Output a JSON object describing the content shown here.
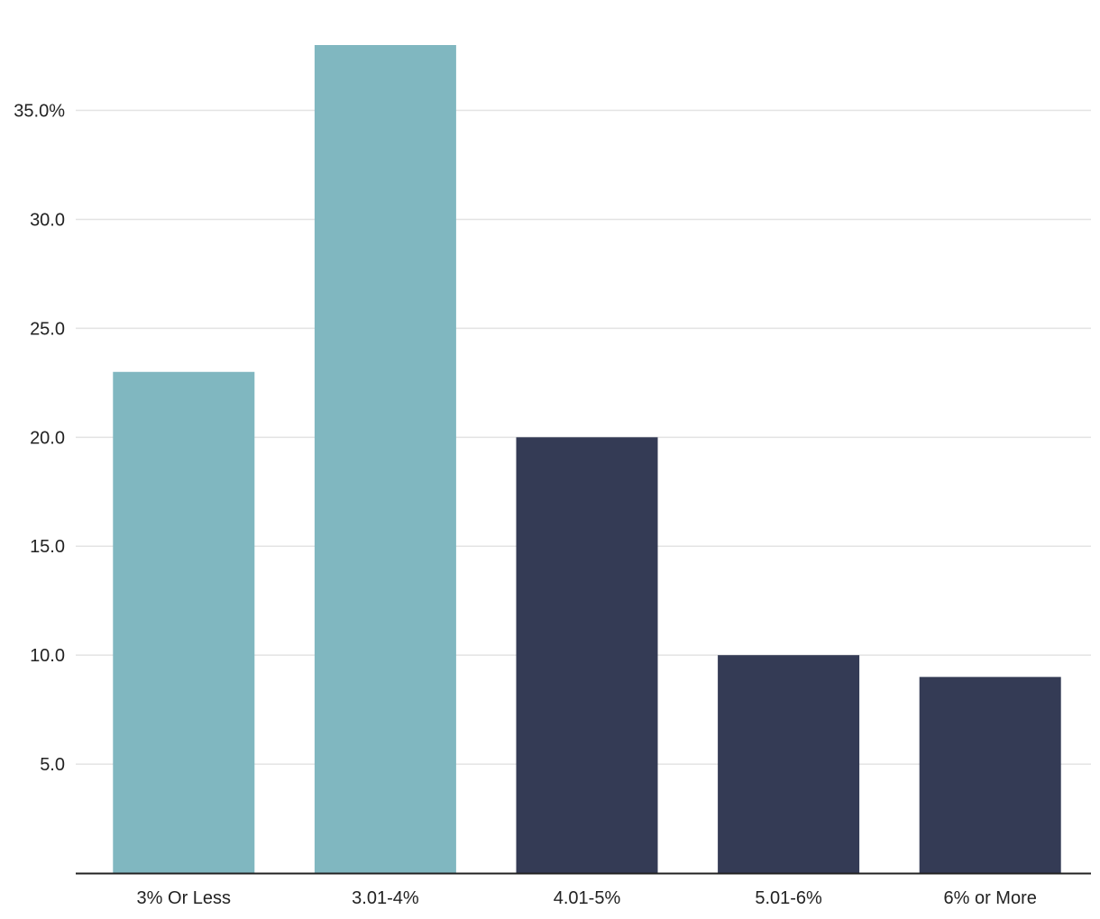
{
  "chart_data": {
    "type": "bar",
    "title": "",
    "xlabel": "",
    "ylabel": "",
    "categories": [
      "3% Or Less",
      "3.01-4%",
      "4.01-5%",
      "5.01-6%",
      "6% or More"
    ],
    "values": [
      23,
      38,
      20,
      10,
      9
    ],
    "bar_colors": [
      "#80b7c0",
      "#80b7c0",
      "#343b55",
      "#343b55",
      "#343b55"
    ],
    "ylim": [
      0,
      38
    ],
    "yticks": [
      5,
      10,
      15,
      20,
      25,
      30,
      35
    ],
    "ytick_labels": [
      "5.0",
      "10.0",
      "15.0",
      "20.0",
      "25.0",
      "30.0",
      "35.0%"
    ],
    "grid": true,
    "legend": "none"
  },
  "colors": {
    "grid": "#e3e3e3",
    "axis": "#222222",
    "text": "#222222"
  }
}
